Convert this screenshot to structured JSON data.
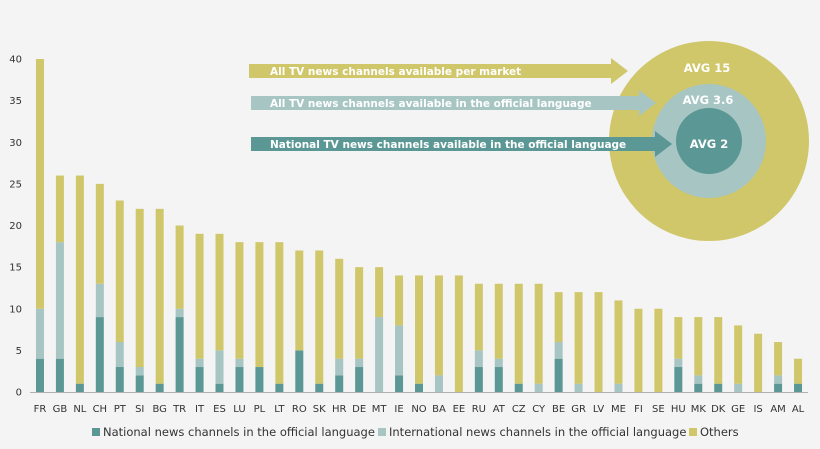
{
  "chart_data": {
    "type": "bar",
    "stacked": true,
    "ylim": [
      0,
      40
    ],
    "yticks": [
      0,
      5,
      10,
      15,
      20,
      25,
      30,
      35,
      40
    ],
    "grid": false,
    "legend_position": "bottom",
    "categories": [
      "FR",
      "GB",
      "NL",
      "CH",
      "PT",
      "SI",
      "BG",
      "TR",
      "IT",
      "ES",
      "LU",
      "PL",
      "LT",
      "RO",
      "SK",
      "HR",
      "DE",
      "MT",
      "IE",
      "NO",
      "BA",
      "EE",
      "RU",
      "AT",
      "CZ",
      "CY",
      "BE",
      "GR",
      "LV",
      "ME",
      "FI",
      "SE",
      "HU",
      "MK",
      "DK",
      "GE",
      "IS",
      "AM",
      "AL"
    ],
    "series": [
      {
        "name": "National news channels in the official language",
        "color": "#5b9794",
        "values": [
          4,
          4,
          1,
          9,
          3,
          2,
          1,
          9,
          3,
          1,
          3,
          3,
          1,
          5,
          1,
          2,
          3,
          0,
          2,
          1,
          0,
          0,
          3,
          3,
          1,
          0,
          4,
          0,
          0,
          0,
          0,
          0,
          3,
          1,
          1,
          0,
          0,
          1,
          1
        ]
      },
      {
        "name": "International news channels in the official language",
        "color": "#a6c5c3",
        "values": [
          6,
          14,
          0,
          4,
          3,
          1,
          0,
          1,
          1,
          4,
          1,
          0,
          0,
          0,
          0,
          2,
          1,
          9,
          6,
          0,
          2,
          0,
          2,
          1,
          0,
          1,
          2,
          1,
          0,
          1,
          0,
          0,
          1,
          1,
          0,
          1,
          0,
          1,
          0
        ]
      },
      {
        "name": "Others",
        "color": "#d0c76a",
        "values": [
          30,
          8,
          25,
          12,
          17,
          19,
          21,
          10,
          15,
          14,
          14,
          15,
          17,
          12,
          16,
          12,
          11,
          6,
          6,
          13,
          12,
          14,
          8,
          9,
          12,
          12,
          6,
          11,
          12,
          10,
          10,
          10,
          5,
          7,
          8,
          7,
          7,
          4,
          3
        ]
      }
    ],
    "annotations": {
      "arrows": [
        {
          "text": "All TV news channels available  per market",
          "color": "#d0c76a"
        },
        {
          "text": "All TV news channels available  in the official language",
          "color": "#a6c5c3"
        },
        {
          "text": "National TV news channels available  in the official language",
          "color": "#5b9794"
        }
      ],
      "circles": [
        {
          "label": "AVG 15",
          "color": "#d0c76a"
        },
        {
          "label": "AVG 3.6",
          "color": "#a6c5c3"
        },
        {
          "label": "AVG 2",
          "color": "#5b9794"
        }
      ]
    }
  }
}
